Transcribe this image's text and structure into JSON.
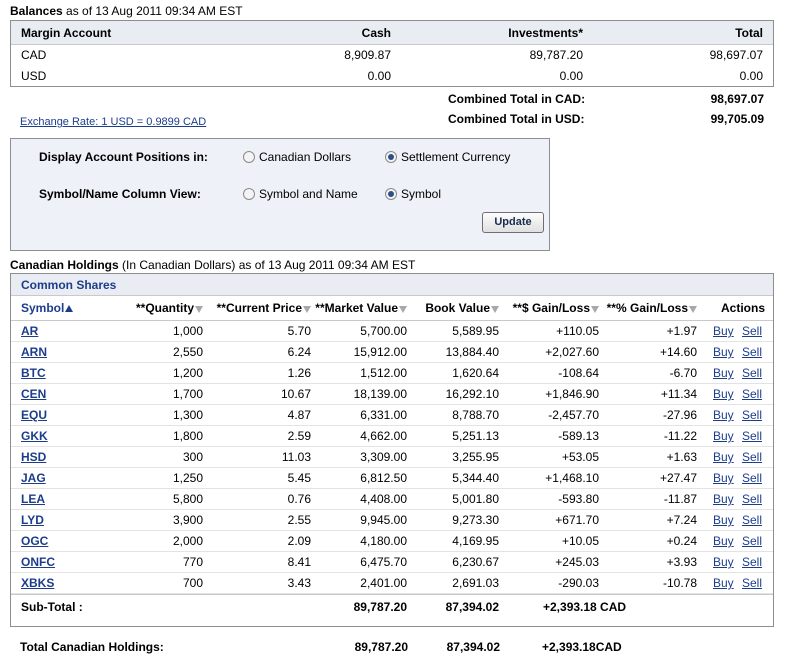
{
  "balances": {
    "title": "Balances",
    "asof": " as of 13 Aug 2011 09:34 AM EST",
    "headers": {
      "account": "Margin Account",
      "cash": "Cash",
      "investments": "Investments*",
      "total": "Total"
    },
    "rows": [
      {
        "currency": "CAD",
        "cash": "8,909.87",
        "investments": "89,787.20",
        "total": "98,697.07"
      },
      {
        "currency": "USD",
        "cash": "0.00",
        "investments": "0.00",
        "total": "0.00"
      }
    ],
    "combined_cad_label": "Combined Total in CAD:",
    "combined_cad_value": "98,697.07",
    "combined_usd_label": "Combined Total in USD:",
    "combined_usd_value": "99,705.09",
    "exchange_rate": "Exchange Rate: 1 USD = 0.9899 CAD"
  },
  "options": {
    "display_label": "Display Account Positions in:",
    "display_opt1": "Canadian Dollars",
    "display_opt2": "Settlement Currency",
    "display_selected": "Settlement Currency",
    "column_label": "Symbol/Name Column View:",
    "column_opt1": "Symbol and Name",
    "column_opt2": "Symbol",
    "column_selected": "Symbol",
    "update_button": "Update"
  },
  "holdings": {
    "title": "Canadian Holdings",
    "subtitle": " (In Canadian Dollars) as of 13 Aug 2011 09:34 AM EST",
    "section": "Common Shares",
    "headers": {
      "symbol": "Symbol",
      "quantity": "**Quantity",
      "price": "**Current Price",
      "market": "**Market Value",
      "book": "Book Value",
      "gain": "**$ Gain/Loss",
      "pct": "**% Gain/Loss",
      "actions": "Actions"
    },
    "buy_label": "Buy",
    "sell_label": "Sell",
    "rows": [
      {
        "symbol": "AR",
        "quantity": "1,000",
        "price": "5.70",
        "market": "5,700.00",
        "book": "5,589.95",
        "gain": "+110.05",
        "pct": "+1.97"
      },
      {
        "symbol": "ARN",
        "quantity": "2,550",
        "price": "6.24",
        "market": "15,912.00",
        "book": "13,884.40",
        "gain": "+2,027.60",
        "pct": "+14.60"
      },
      {
        "symbol": "BTC",
        "quantity": "1,200",
        "price": "1.26",
        "market": "1,512.00",
        "book": "1,620.64",
        "gain": "-108.64",
        "pct": "-6.70"
      },
      {
        "symbol": "CEN",
        "quantity": "1,700",
        "price": "10.67",
        "market": "18,139.00",
        "book": "16,292.10",
        "gain": "+1,846.90",
        "pct": "+11.34"
      },
      {
        "symbol": "EQU",
        "quantity": "1,300",
        "price": "4.87",
        "market": "6,331.00",
        "book": "8,788.70",
        "gain": "-2,457.70",
        "pct": "-27.96"
      },
      {
        "symbol": "GKK",
        "quantity": "1,800",
        "price": "2.59",
        "market": "4,662.00",
        "book": "5,251.13",
        "gain": "-589.13",
        "pct": "-11.22"
      },
      {
        "symbol": "HSD",
        "quantity": "300",
        "price": "11.03",
        "market": "3,309.00",
        "book": "3,255.95",
        "gain": "+53.05",
        "pct": "+1.63"
      },
      {
        "symbol": "JAG",
        "quantity": "1,250",
        "price": "5.45",
        "market": "6,812.50",
        "book": "5,344.40",
        "gain": "+1,468.10",
        "pct": "+27.47"
      },
      {
        "symbol": "LEA",
        "quantity": "5,800",
        "price": "0.76",
        "market": "4,408.00",
        "book": "5,001.80",
        "gain": "-593.80",
        "pct": "-11.87"
      },
      {
        "symbol": "LYD",
        "quantity": "3,900",
        "price": "2.55",
        "market": "9,945.00",
        "book": "9,273.30",
        "gain": "+671.70",
        "pct": "+7.24"
      },
      {
        "symbol": "OGC",
        "quantity": "2,000",
        "price": "2.09",
        "market": "4,180.00",
        "book": "4,169.95",
        "gain": "+10.05",
        "pct": "+0.24"
      },
      {
        "symbol": "ONFC",
        "quantity": "770",
        "price": "8.41",
        "market": "6,475.70",
        "book": "6,230.67",
        "gain": "+245.03",
        "pct": "+3.93"
      },
      {
        "symbol": "XBKS",
        "quantity": "700",
        "price": "3.43",
        "market": "2,401.00",
        "book": "2,691.03",
        "gain": "-290.03",
        "pct": "-10.78"
      }
    ],
    "subtotal": {
      "label": "Sub-Total :",
      "market": "89,787.20",
      "book": "87,394.02",
      "gain": "+2,393.18 CAD"
    },
    "total": {
      "label": "Total Canadian Holdings:",
      "market": "89,787.20",
      "book": "87,394.02",
      "gain": "+2,393.18CAD"
    }
  }
}
